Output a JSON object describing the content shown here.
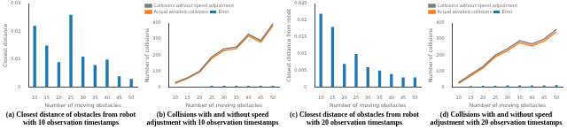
{
  "chart_data": [
    {
      "type": "bar",
      "title": "(a) Closest distance of obstacles from robot with 10 observation timestamps",
      "x_label": "Number of moving obstacles",
      "y_label": "Closest distance",
      "categories": [
        10,
        15,
        20,
        25,
        30,
        35,
        40,
        45,
        50
      ],
      "values": [
        0.022,
        0.015,
        0.009,
        0.026,
        0.011,
        0.008,
        0.01,
        0.004,
        0.003
      ],
      "color": "#1f77b4",
      "ylim": [
        0,
        0.03
      ],
      "yticks": [
        0,
        0.01,
        0.02,
        0.03
      ]
    },
    {
      "type": "line",
      "title": "(b) Collisions with and without speed adjustment with 10 observation timestamps",
      "x_label": "Number of moving obstacles",
      "y_label": "Number of collisions",
      "categories": [
        10,
        15,
        20,
        25,
        30,
        35,
        40,
        45,
        50
      ],
      "series": [
        {
          "name": "Collisions without speed adjustment",
          "color": "#7f7f7f",
          "type": "line",
          "values": [
            30,
            60,
            100,
            190,
            240,
            250,
            330,
            290,
            395
          ]
        },
        {
          "name": "Actual avoided collisions",
          "color": "#ff7f0e",
          "type": "line",
          "values": [
            25,
            55,
            95,
            180,
            230,
            240,
            320,
            280,
            385
          ]
        },
        {
          "name": "Error",
          "color": "#1f77b4",
          "type": "bar",
          "values": [
            5,
            5,
            5,
            10,
            10,
            10,
            10,
            10,
            10
          ]
        }
      ],
      "ylim": [
        0,
        400
      ],
      "yticks": [
        0,
        100,
        200,
        300,
        400
      ],
      "legend": "upper left"
    },
    {
      "type": "bar",
      "title": "(c) Closest distance of obstacles from robot with 20 observation timestamps",
      "x_label": "Number of moving obstacles",
      "y_label": "Closest distance from robot",
      "categories": [
        10,
        15,
        20,
        25,
        30,
        35,
        40,
        45,
        50
      ],
      "values": [
        0.022,
        0.018,
        0.007,
        0.01,
        0.006,
        0.005,
        0.004,
        0.003,
        0.003
      ],
      "color": "#1f77b4",
      "ylim": [
        0,
        0.025
      ],
      "yticks": [
        0,
        0.005,
        0.01,
        0.015,
        0.02,
        0.025
      ]
    },
    {
      "type": "line",
      "title": "(d) Collisions with and without speed adjustment with 20 observation timestamps",
      "x_label": "Number of moving obstacles",
      "y_label": "Number of collisions",
      "categories": [
        10,
        15,
        20,
        25,
        30,
        35,
        40,
        45,
        50
      ],
      "series": [
        {
          "name": "Collisions without speed adjustment",
          "color": "#7f7f7f",
          "type": "line",
          "values": [
            30,
            80,
            130,
            200,
            240,
            290,
            270,
            300,
            360
          ]
        },
        {
          "name": "Actual avoided collisions",
          "color": "#ff7f0e",
          "type": "line",
          "values": [
            25,
            72,
            120,
            190,
            228,
            278,
            258,
            288,
            345
          ]
        },
        {
          "name": "Error",
          "color": "#1f77b4",
          "type": "bar",
          "values": [
            5,
            8,
            10,
            10,
            12,
            12,
            12,
            12,
            15
          ]
        }
      ],
      "ylim": [
        0,
        400
      ],
      "yticks": [
        0,
        100,
        200,
        300,
        400
      ],
      "legend": "upper left"
    }
  ]
}
